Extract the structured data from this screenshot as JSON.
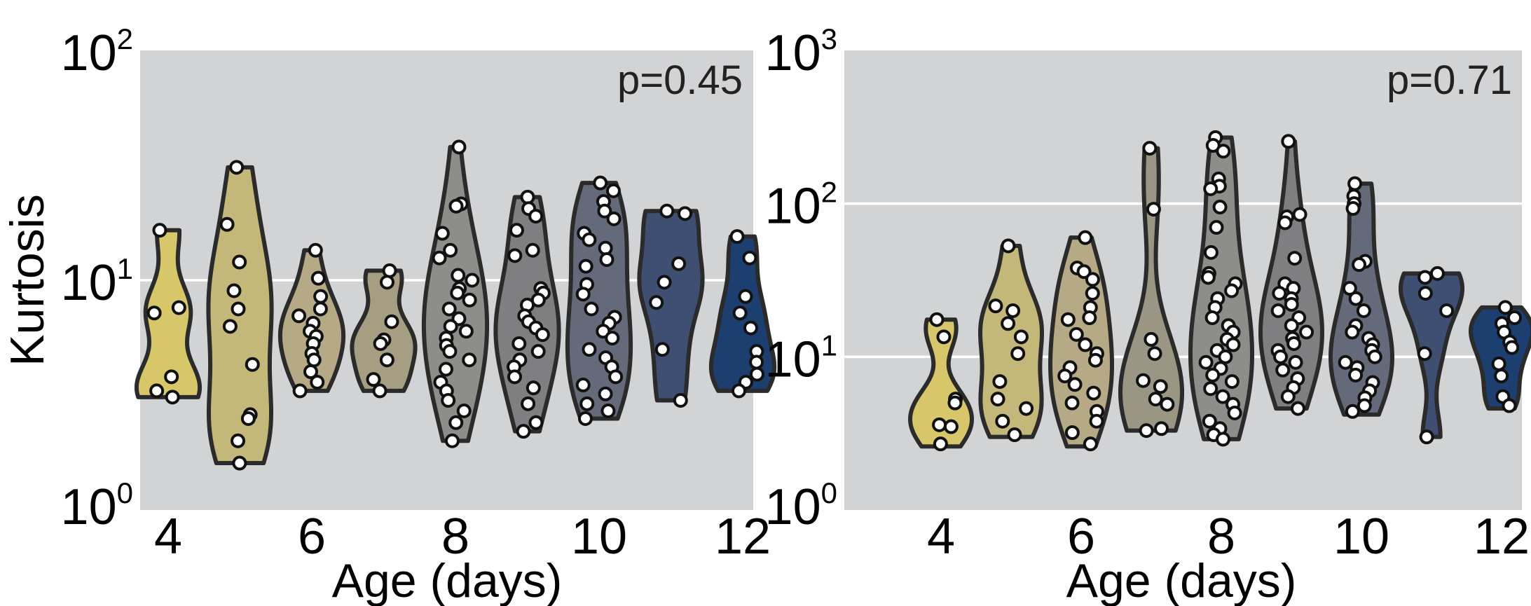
{
  "chart_data": [
    {
      "type": "violin",
      "ylabel": "Kurtosis",
      "xlabel": "Age (days)",
      "yscale": "log",
      "ylim": [
        1,
        100
      ],
      "y_ticks": [
        {
          "base": "10",
          "exp": "0"
        },
        {
          "base": "10",
          "exp": "1"
        },
        {
          "base": "10",
          "exp": "2"
        }
      ],
      "x_ticks": [
        "4",
        "6",
        "8",
        "10",
        "12"
      ],
      "annotation": "p=0.45",
      "background": "#d2d3d5",
      "groups": [
        {
          "age": 4,
          "color": "#d8c66a",
          "min": 3.1,
          "max": 16.5,
          "points": [
            16.5,
            7.6,
            7.2,
            3.8,
            3.3,
            3.1
          ]
        },
        {
          "age": 5,
          "color": "#c4b77a",
          "min": 1.6,
          "max": 31,
          "points": [
            31,
            17.5,
            12,
            9,
            7.5,
            6.3,
            4.3,
            2.6,
            2.5,
            2.0,
            1.6
          ]
        },
        {
          "age": 6,
          "color": "#b5aa85",
          "min": 3.3,
          "max": 13.5,
          "points": [
            13.5,
            10.2,
            8.5,
            7.5,
            7,
            6.5,
            6,
            5.7,
            5.3,
            4.8,
            4.5,
            4.0,
            3.6,
            3.3
          ]
        },
        {
          "age": 7,
          "color": "#a59e83",
          "min": 3.3,
          "max": 11,
          "points": [
            11,
            9.8,
            6.6,
            5.5,
            5.3,
            4.5,
            3.7,
            3.3
          ]
        },
        {
          "age": 8,
          "color": "#8d8d8a",
          "min": 2.0,
          "max": 38,
          "points": [
            38,
            21.5,
            21,
            16,
            13.5,
            12.5,
            10.5,
            10,
            9.2,
            8.8,
            8.2,
            7.5,
            6.8,
            6.3,
            6.0,
            5.6,
            5.2,
            4.9,
            4.5,
            4.1,
            3.6,
            3.3,
            3.0,
            2.7,
            2.4,
            2.0
          ]
        },
        {
          "age": 9,
          "color": "#7f7f81",
          "min": 2.2,
          "max": 23,
          "points": [
            23,
            20.5,
            19,
            16.5,
            13.5,
            12.8,
            9.2,
            8.8,
            8.2,
            7.8,
            7.0,
            6.6,
            6.2,
            5.8,
            5.3,
            4.9,
            4.5,
            4.2,
            3.8,
            3.4,
            2.9,
            2.4,
            2.2
          ]
        },
        {
          "age": 10,
          "color": "#656a7a",
          "min": 2.5,
          "max": 26.5,
          "points": [
            26.5,
            24.5,
            22,
            20,
            18.5,
            16,
            15,
            13.8,
            12.3,
            11.5,
            9.6,
            8.7,
            7.5,
            6.9,
            6.5,
            6.0,
            5.6,
            5.0,
            4.6,
            4.2,
            3.8,
            3.5,
            3.2,
            2.9,
            2.7,
            2.5
          ]
        },
        {
          "age": 11,
          "color": "#3e4f71",
          "min": 3.0,
          "max": 20,
          "points": [
            20,
            19.5,
            11.8,
            9.8,
            8.0,
            5.0,
            3.0
          ]
        },
        {
          "age": 12,
          "color": "#1c3f70",
          "min": 3.3,
          "max": 15.5,
          "points": [
            15.5,
            12.5,
            8.5,
            7.2,
            6.2,
            4.9,
            4.4,
            3.9,
            3.6,
            3.3
          ]
        }
      ]
    },
    {
      "type": "violin",
      "ylabel": "",
      "xlabel": "Age (days)",
      "yscale": "log",
      "ylim": [
        1,
        1000
      ],
      "y_ticks": [
        {
          "base": "10",
          "exp": "0"
        },
        {
          "base": "10",
          "exp": "1"
        },
        {
          "base": "10",
          "exp": "2"
        },
        {
          "base": "10",
          "exp": "3"
        }
      ],
      "x_ticks": [
        "4",
        "6",
        "8",
        "10",
        "12"
      ],
      "annotation": "p=0.71",
      "background": "#d2d3d5",
      "groups": [
        {
          "age": 4,
          "color": "#d8c66a",
          "min": 2.6,
          "max": 17.5,
          "points": [
            17.5,
            13.5,
            5.3,
            5.0,
            3.6,
            3.5,
            2.7
          ]
        },
        {
          "age": 5,
          "color": "#c4b77a",
          "min": 3.0,
          "max": 53,
          "points": [
            53,
            21.5,
            20,
            16.5,
            13.5,
            10.5,
            6.9,
            5.3,
            4.6,
            3.8,
            3.1
          ]
        },
        {
          "age": 6,
          "color": "#b5aa85",
          "min": 2.6,
          "max": 60,
          "points": [
            60,
            38,
            36,
            32,
            26,
            21,
            18,
            17.5,
            14,
            12,
            10.5,
            9.5,
            8.5,
            7.5,
            6.6,
            5.8,
            5.0,
            4.4,
            3.8,
            3.2,
            2.7
          ]
        },
        {
          "age": 7,
          "color": "#9b9683",
          "min": 3.3,
          "max": 230,
          "points": [
            230,
            92,
            13,
            10.5,
            7.0,
            6.4,
            5.3,
            4.9,
            3.4,
            3.3
          ]
        },
        {
          "age": 8,
          "color": "#8d8d8a",
          "min": 2.9,
          "max": 270,
          "points": [
            270,
            240,
            220,
            145,
            130,
            125,
            95,
            70,
            48,
            35,
            33,
            30,
            27,
            24,
            21,
            18,
            16,
            14.5,
            13,
            12,
            11,
            10,
            9.2,
            8.4,
            7.6,
            6.9,
            6.2,
            5.5,
            4.9,
            4.3,
            3.8,
            3.4,
            3.1,
            2.9
          ]
        },
        {
          "age": 9,
          "color": "#7f7f81",
          "min": 4.6,
          "max": 255,
          "points": [
            255,
            85,
            82,
            75,
            44,
            30,
            28,
            26,
            24,
            22,
            20,
            18,
            16,
            14.5,
            13.2,
            12.2,
            11,
            10,
            9.2,
            8.2,
            7.2,
            6.3,
            5.5,
            4.6
          ]
        },
        {
          "age": 10,
          "color": "#656a7a",
          "min": 4.2,
          "max": 135,
          "points": [
            135,
            112,
            100,
            93,
            42,
            40,
            28,
            24,
            20,
            16,
            14.5,
            13.2,
            12,
            11,
            10,
            9.2,
            8.5,
            7.6,
            6.8,
            6.0,
            5.4,
            4.8,
            4.4
          ]
        },
        {
          "age": 11,
          "color": "#3e4f71",
          "min": 3.0,
          "max": 35,
          "points": [
            35,
            33,
            26,
            20,
            10.5,
            3.0
          ]
        },
        {
          "age": 12,
          "color": "#1c3f70",
          "min": 4.6,
          "max": 21,
          "points": [
            21,
            18,
            16.5,
            14.5,
            12.5,
            11.5,
            9.0,
            7.5,
            5.5,
            4.8
          ]
        }
      ]
    }
  ]
}
